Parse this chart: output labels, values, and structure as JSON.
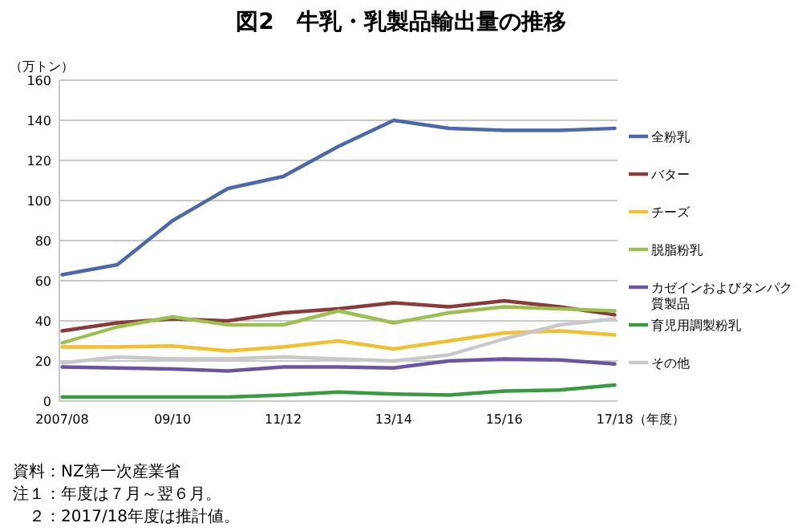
{
  "chart_data": {
    "type": "line",
    "title": "図2　牛乳・乳製品輸出量の推移",
    "ylabel": "（万トン）",
    "xlabel": "（年度）",
    "categories": [
      "2007/08",
      null,
      "09/10",
      null,
      "11/12",
      null,
      "13/14",
      null,
      "15/16",
      null,
      "17/18"
    ],
    "ylim": [
      0,
      160
    ],
    "yticks": [
      0,
      20,
      40,
      60,
      80,
      100,
      120,
      140,
      160
    ],
    "grid": "y",
    "legend": "right",
    "marker": "none",
    "line_style": "solid",
    "series": [
      {
        "name": "全粉乳",
        "color": "#4a68ab",
        "values": [
          63,
          68,
          90,
          106,
          112,
          127,
          140,
          136,
          135,
          135,
          136
        ]
      },
      {
        "name": "バター",
        "color": "#8b3a3a",
        "values": [
          35,
          39,
          41,
          40,
          44,
          46,
          49,
          47,
          50,
          47,
          43
        ]
      },
      {
        "name": "チーズ",
        "color": "#f0c030",
        "values": [
          27,
          27,
          27.5,
          25,
          27,
          30,
          26,
          30,
          34,
          35,
          33
        ]
      },
      {
        "name": "脱脂粉乳",
        "color": "#9bc050",
        "values": [
          29,
          37,
          42,
          38,
          38,
          45,
          39,
          44,
          47,
          46,
          45
        ]
      },
      {
        "name": "カゼインおよびタンパク質製品",
        "color": "#6a55a0",
        "values": [
          17,
          16.5,
          16,
          15,
          17,
          17,
          16.5,
          20,
          21,
          20.5,
          18.5
        ]
      },
      {
        "name": "育児用調製粉乳",
        "color": "#3a9a40",
        "values": [
          2,
          2,
          2,
          2,
          3,
          4.5,
          3.5,
          3,
          5,
          5.5,
          8
        ]
      },
      {
        "name": "その他",
        "color": "#c8c8c8",
        "values": [
          19,
          22,
          21,
          21,
          22,
          21,
          20,
          23,
          31,
          38,
          41
        ]
      }
    ],
    "annotations": [
      "資料：NZ第一次産業省",
      "注１：年度は７月～翌６月。",
      "　２：2017/18年度は推計値。"
    ]
  }
}
